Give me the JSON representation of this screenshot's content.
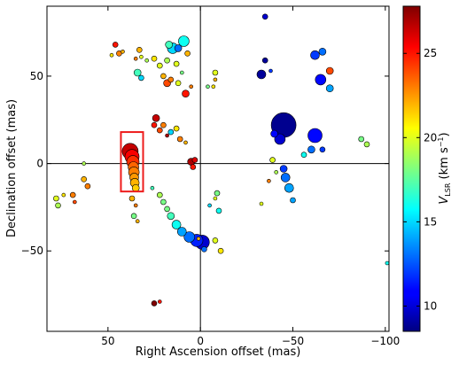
{
  "chart_data": {
    "type": "scatter",
    "title": "",
    "xlabel": "Right Ascension offset (mas)",
    "ylabel": "Declination offset (mas)",
    "xlim": [
      83,
      -102
    ],
    "ylim": [
      -96,
      90
    ],
    "x_ticks": [
      50,
      0,
      -50,
      -100
    ],
    "x_tick_labels": [
      "50",
      "0",
      "−50",
      "−100"
    ],
    "y_ticks": [
      50,
      0,
      -50
    ],
    "y_tick_labels": [
      "50",
      "0",
      "−50"
    ],
    "reference_lines": {
      "x": 0,
      "y": 0
    },
    "grid": false,
    "colorbar": {
      "label_symbol": "V",
      "label_subscript": "LSR",
      "label_units": "(km s",
      "label_units_sup": "−1",
      "label_units_close": ")",
      "range": [
        8.5,
        27.8
      ],
      "ticks": [
        10,
        15,
        20,
        25
      ],
      "tick_labels": [
        "10",
        "15",
        "20",
        "25"
      ],
      "colormap": "jet"
    },
    "highlight_box": {
      "x_range": [
        31,
        43
      ],
      "y_range": [
        -16,
        18
      ],
      "color": "#ee1c1c"
    },
    "clusters": [
      {
        "x": 38,
        "y": 7,
        "v": 26.5,
        "size": 9
      },
      {
        "x": 37,
        "y": 4,
        "v": 25.5,
        "size": 8
      },
      {
        "x": 36.5,
        "y": 1,
        "v": 24.5,
        "size": 7
      },
      {
        "x": 36.2,
        "y": -2,
        "v": 23.5,
        "size": 6
      },
      {
        "x": 36,
        "y": -5,
        "v": 23,
        "size": 6
      },
      {
        "x": 35.8,
        "y": -8,
        "v": 22.5,
        "size": 5
      },
      {
        "x": 35.5,
        "y": -11,
        "v": 22,
        "size": 5
      },
      {
        "x": 35,
        "y": -14,
        "v": 21.5,
        "size": 4
      },
      {
        "x": 46,
        "y": 68,
        "v": 25,
        "size": 3
      },
      {
        "x": 44,
        "y": 63,
        "v": 23,
        "size": 3
      },
      {
        "x": 48,
        "y": 62,
        "v": 21,
        "size": 2
      },
      {
        "x": 42,
        "y": 64,
        "v": 22,
        "size": 2
      },
      {
        "x": 33,
        "y": 65,
        "v": 22,
        "size": 3
      },
      {
        "x": 32,
        "y": 61,
        "v": 20,
        "size": 2
      },
      {
        "x": 35,
        "y": 60,
        "v": 23,
        "size": 2
      },
      {
        "x": 34,
        "y": 52,
        "v": 17,
        "size": 4
      },
      {
        "x": 32,
        "y": 49,
        "v": 15,
        "size": 3
      },
      {
        "x": 29,
        "y": 59,
        "v": 19,
        "size": 2
      },
      {
        "x": 25,
        "y": 60,
        "v": 21,
        "size": 3
      },
      {
        "x": 22,
        "y": 56,
        "v": 20,
        "size": 3
      },
      {
        "x": 20,
        "y": 50,
        "v": 22,
        "size": 3
      },
      {
        "x": 18,
        "y": 46,
        "v": 24,
        "size": 4
      },
      {
        "x": 16,
        "y": 48,
        "v": 23,
        "size": 3
      },
      {
        "x": 15,
        "y": 66,
        "v": 15,
        "size": 6
      },
      {
        "x": 17,
        "y": 68,
        "v": 17,
        "size": 4
      },
      {
        "x": 12,
        "y": 66,
        "v": 13,
        "size": 4
      },
      {
        "x": 9,
        "y": 70,
        "v": 16,
        "size": 6
      },
      {
        "x": 7,
        "y": 63,
        "v": 22,
        "size": 3
      },
      {
        "x": 13,
        "y": 57,
        "v": 20,
        "size": 3
      },
      {
        "x": 18,
        "y": 59,
        "v": 19,
        "size": 3
      },
      {
        "x": 12,
        "y": 46,
        "v": 20,
        "size": 3
      },
      {
        "x": 10,
        "y": 52,
        "v": 18,
        "size": 2
      },
      {
        "x": 8,
        "y": 40,
        "v": 25,
        "size": 4
      },
      {
        "x": 5,
        "y": 44,
        "v": 23,
        "size": 2
      },
      {
        "x": 24,
        "y": 26,
        "v": 26.5,
        "size": 4
      },
      {
        "x": 25,
        "y": 22,
        "v": 25,
        "size": 3
      },
      {
        "x": 22,
        "y": 19,
        "v": 24,
        "size": 3
      },
      {
        "x": 20,
        "y": 22,
        "v": 23,
        "size": 3
      },
      {
        "x": 18,
        "y": 16,
        "v": 27,
        "size": 2
      },
      {
        "x": 16,
        "y": 18,
        "v": 15,
        "size": 3
      },
      {
        "x": 13,
        "y": 20,
        "v": 21,
        "size": 3
      },
      {
        "x": 11,
        "y": 14,
        "v": 23,
        "size": 3
      },
      {
        "x": 8,
        "y": 12,
        "v": 22,
        "size": 2
      },
      {
        "x": 5,
        "y": 1,
        "v": 27,
        "size": 4
      },
      {
        "x": 4,
        "y": -2,
        "v": 25,
        "size": 3
      },
      {
        "x": 3,
        "y": 2,
        "v": 26,
        "size": 3
      },
      {
        "x": 26,
        "y": -14,
        "v": 17,
        "size": 2
      },
      {
        "x": 22,
        "y": -18,
        "v": 19,
        "size": 3
      },
      {
        "x": 20,
        "y": -22,
        "v": 18,
        "size": 3
      },
      {
        "x": 18,
        "y": -26,
        "v": 18,
        "size": 3
      },
      {
        "x": 16,
        "y": -30,
        "v": 17,
        "size": 4
      },
      {
        "x": 13,
        "y": -35,
        "v": 16,
        "size": 5
      },
      {
        "x": 10,
        "y": -39,
        "v": 14,
        "size": 5
      },
      {
        "x": 6,
        "y": -42,
        "v": 13,
        "size": 6
      },
      {
        "x": 2,
        "y": -44,
        "v": 11.5,
        "size": 7
      },
      {
        "x": -1,
        "y": -45,
        "v": 10,
        "size": 8
      },
      {
        "x": -2,
        "y": -49,
        "v": 13,
        "size": 3
      },
      {
        "x": 1,
        "y": -43,
        "v": 22,
        "size": 2
      },
      {
        "x": 37,
        "y": -20,
        "v": 22,
        "size": 3
      },
      {
        "x": 35,
        "y": -24,
        "v": 23,
        "size": 2
      },
      {
        "x": 36,
        "y": -30,
        "v": 18,
        "size": 3
      },
      {
        "x": 34,
        "y": -33,
        "v": 22,
        "size": 2
      },
      {
        "x": 78,
        "y": -20,
        "v": 20,
        "size": 3
      },
      {
        "x": 77,
        "y": -24,
        "v": 19,
        "size": 3
      },
      {
        "x": 74,
        "y": -18,
        "v": 21,
        "size": 2
      },
      {
        "x": 69,
        "y": -18,
        "v": 23,
        "size": 3
      },
      {
        "x": 63,
        "y": -9,
        "v": 22,
        "size": 3
      },
      {
        "x": 61,
        "y": -13,
        "v": 23,
        "size": 3
      },
      {
        "x": 63,
        "y": 0,
        "v": 19,
        "size": 2
      },
      {
        "x": 68,
        "y": -22,
        "v": 24,
        "size": 2
      },
      {
        "x": -45,
        "y": 22,
        "v": 8.8,
        "size": 14
      },
      {
        "x": -43,
        "y": 14,
        "v": 10,
        "size": 6
      },
      {
        "x": -40,
        "y": 17,
        "v": 11,
        "size": 4
      },
      {
        "x": -62,
        "y": 16,
        "v": 11,
        "size": 8
      },
      {
        "x": -60,
        "y": 8,
        "v": 13,
        "size": 4
      },
      {
        "x": -66,
        "y": 8,
        "v": 12,
        "size": 3
      },
      {
        "x": -56,
        "y": 5,
        "v": 16,
        "size": 3
      },
      {
        "x": -35,
        "y": 84,
        "v": 10,
        "size": 3
      },
      {
        "x": -35,
        "y": 59,
        "v": 9,
        "size": 3
      },
      {
        "x": -33,
        "y": 51,
        "v": 9,
        "size": 5
      },
      {
        "x": -38,
        "y": 53,
        "v": 12,
        "size": 2
      },
      {
        "x": -62,
        "y": 62,
        "v": 12,
        "size": 5
      },
      {
        "x": -66,
        "y": 64,
        "v": 13,
        "size": 4
      },
      {
        "x": -70,
        "y": 53,
        "v": 24,
        "size": 4
      },
      {
        "x": -65,
        "y": 48,
        "v": 11,
        "size": 6
      },
      {
        "x": -70,
        "y": 43,
        "v": 14,
        "size": 4
      },
      {
        "x": -87,
        "y": 14,
        "v": 18,
        "size": 3
      },
      {
        "x": -90,
        "y": 11,
        "v": 19,
        "size": 3
      },
      {
        "x": -45,
        "y": -3,
        "v": 12,
        "size": 4
      },
      {
        "x": -46,
        "y": -8,
        "v": 13,
        "size": 5
      },
      {
        "x": -48,
        "y": -14,
        "v": 14,
        "size": 5
      },
      {
        "x": -50,
        "y": -21,
        "v": 14,
        "size": 3
      },
      {
        "x": -39,
        "y": 2,
        "v": 20,
        "size": 3
      },
      {
        "x": -41,
        "y": -5,
        "v": 19,
        "size": 2
      },
      {
        "x": -37,
        "y": -10,
        "v": 23,
        "size": 2
      },
      {
        "x": -33,
        "y": -23,
        "v": 20,
        "size": 2
      },
      {
        "x": -8,
        "y": 52,
        "v": 20,
        "size": 3
      },
      {
        "x": -8,
        "y": 48,
        "v": 22,
        "size": 2
      },
      {
        "x": -7,
        "y": 44,
        "v": 21,
        "size": 2
      },
      {
        "x": -4,
        "y": 44,
        "v": 18,
        "size": 2
      },
      {
        "x": -9,
        "y": -17,
        "v": 18,
        "size": 3
      },
      {
        "x": -8,
        "y": -20,
        "v": 20,
        "size": 2
      },
      {
        "x": -5,
        "y": -24,
        "v": 15,
        "size": 2
      },
      {
        "x": -10,
        "y": -27,
        "v": 16,
        "size": 3
      },
      {
        "x": -8,
        "y": -44,
        "v": 20,
        "size": 3
      },
      {
        "x": -11,
        "y": -50,
        "v": 21,
        "size": 3
      },
      {
        "x": 25,
        "y": -80,
        "v": 28,
        "size": 3
      },
      {
        "x": 22,
        "y": -79,
        "v": 25,
        "size": 2
      },
      {
        "x": -101,
        "y": -57,
        "v": 16,
        "size": 2
      }
    ]
  }
}
